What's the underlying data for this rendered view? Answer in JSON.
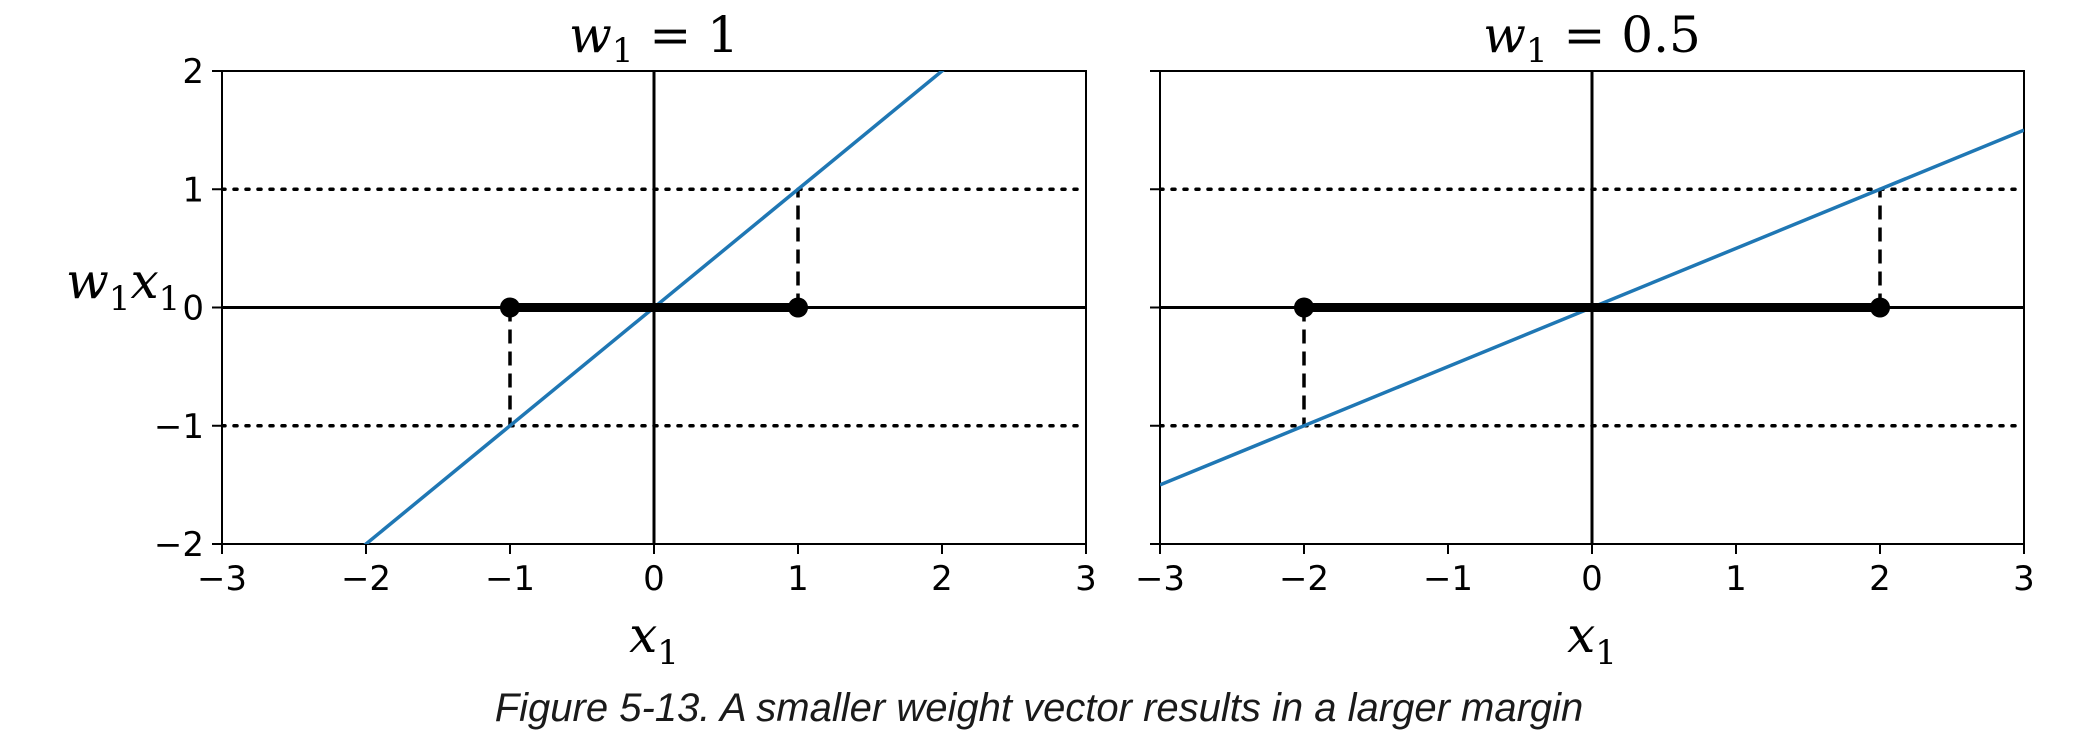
{
  "caption": "Figure 5-13. A smaller weight vector results in a larger margin",
  "chart_data": [
    {
      "type": "line",
      "title": "w₁ = 1",
      "title_parts": {
        "var": "w",
        "sub": "1",
        "rest": "= 1"
      },
      "xlabel_parts": {
        "var": "x",
        "sub": "1"
      },
      "ylabel_parts": {
        "var": "w",
        "sub": "1",
        "var2": "x",
        "sub2": "1"
      },
      "xlim": [
        -3,
        3
      ],
      "ylim": [
        -2,
        2
      ],
      "xticks": [
        "−3",
        "−2",
        "−1",
        "0",
        "1",
        "2",
        "3"
      ],
      "xtick_values": [
        -3,
        -2,
        -1,
        0,
        1,
        2,
        3
      ],
      "yticks": [
        "−2",
        "−1",
        "0",
        "1",
        "2"
      ],
      "ytick_values": [
        -2,
        -1,
        0,
        1,
        2
      ],
      "show_yticks": true,
      "series": [
        {
          "kind": "decision-line",
          "x": [
            -3,
            3
          ],
          "y": [
            -3,
            3
          ],
          "color": "#1f77b4"
        }
      ],
      "margin_levels": [
        -1,
        1
      ],
      "margin_segment": {
        "x": [
          -1,
          1
        ],
        "y": 0
      },
      "support_points": [
        {
          "x": -1,
          "y": 0
        },
        {
          "x": 1,
          "y": 0
        }
      ],
      "dashed_connectors": [
        {
          "x": -1,
          "from": 0,
          "to": -1
        },
        {
          "x": 1,
          "from": 0,
          "to": 1
        }
      ]
    },
    {
      "type": "line",
      "title": "w₁ = 0.5",
      "title_parts": {
        "var": "w",
        "sub": "1",
        "rest": "= 0.5"
      },
      "xlabel_parts": {
        "var": "x",
        "sub": "1"
      },
      "xlim": [
        -3,
        3
      ],
      "ylim": [
        -2,
        2
      ],
      "xticks": [
        "−3",
        "−2",
        "−1",
        "0",
        "1",
        "2",
        "3"
      ],
      "xtick_values": [
        -3,
        -2,
        -1,
        0,
        1,
        2,
        3
      ],
      "yticks": [],
      "ytick_values": [
        -2,
        -1,
        0,
        1,
        2
      ],
      "show_yticks": false,
      "series": [
        {
          "kind": "decision-line",
          "x": [
            -3,
            3
          ],
          "y": [
            -1.5,
            1.5
          ],
          "color": "#1f77b4"
        }
      ],
      "margin_levels": [
        -1,
        1
      ],
      "margin_segment": {
        "x": [
          -2,
          2
        ],
        "y": 0
      },
      "support_points": [
        {
          "x": -2,
          "y": 0
        },
        {
          "x": 2,
          "y": 0
        }
      ],
      "dashed_connectors": [
        {
          "x": -2,
          "from": 0,
          "to": -1
        },
        {
          "x": 2,
          "from": 0,
          "to": 1
        }
      ]
    }
  ]
}
